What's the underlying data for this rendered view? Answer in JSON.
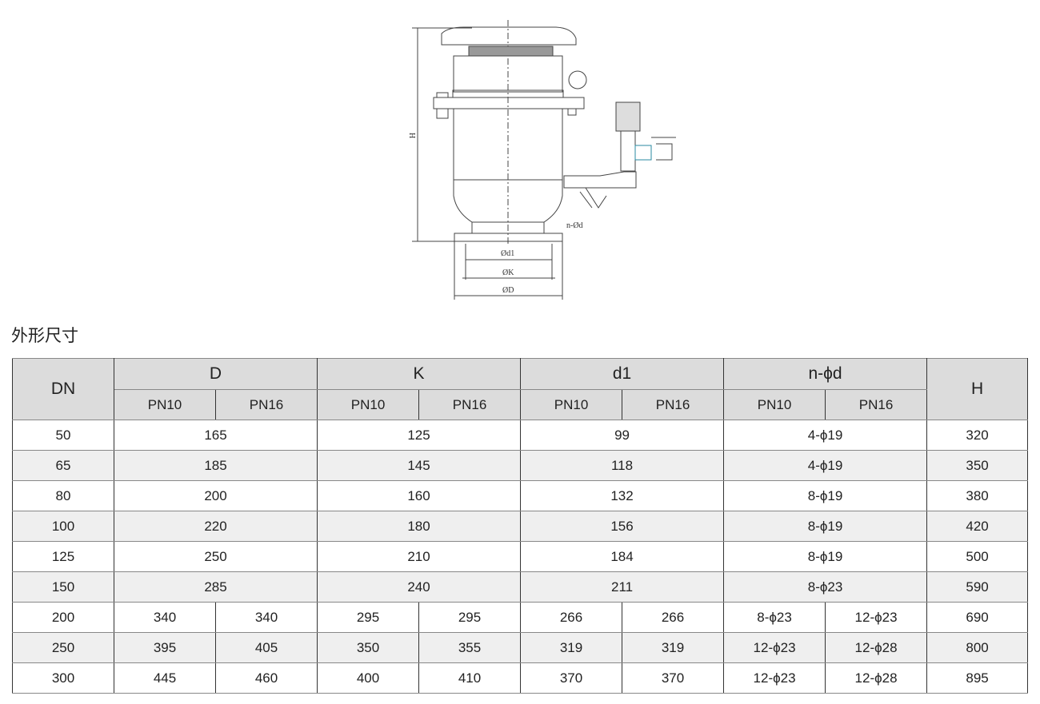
{
  "drawing": {
    "labels": {
      "H": "H",
      "nd": "n-Ød",
      "d1": "Ød1",
      "K": "ØK",
      "D": "ØD"
    }
  },
  "title": "外形尺寸",
  "table": {
    "header": {
      "DN": "DN",
      "D": "D",
      "K": "K",
      "d1": "d1",
      "nd": "n-ϕd",
      "H": "H",
      "PN10": "PN10",
      "PN16": "PN16"
    },
    "rows": [
      {
        "DN": "50",
        "merged": true,
        "D": "165",
        "K": "125",
        "d1": "99",
        "nd": "4-ϕ19",
        "H": "320"
      },
      {
        "DN": "65",
        "merged": true,
        "D": "185",
        "K": "145",
        "d1": "118",
        "nd": "4-ϕ19",
        "H": "350"
      },
      {
        "DN": "80",
        "merged": true,
        "D": "200",
        "K": "160",
        "d1": "132",
        "nd": "8-ϕ19",
        "H": "380"
      },
      {
        "DN": "100",
        "merged": true,
        "D": "220",
        "K": "180",
        "d1": "156",
        "nd": "8-ϕ19",
        "H": "420"
      },
      {
        "DN": "125",
        "merged": true,
        "D": "250",
        "K": "210",
        "d1": "184",
        "nd": "8-ϕ19",
        "H": "500"
      },
      {
        "DN": "150",
        "merged": true,
        "D": "285",
        "K": "240",
        "d1": "211",
        "nd": "8-ϕ23",
        "H": "590"
      },
      {
        "DN": "200",
        "merged": false,
        "D": [
          "340",
          "340"
        ],
        "K": [
          "295",
          "295"
        ],
        "d1": [
          "266",
          "266"
        ],
        "nd": [
          "8-ϕ23",
          "12-ϕ23"
        ],
        "H": "690"
      },
      {
        "DN": "250",
        "merged": false,
        "D": [
          "395",
          "405"
        ],
        "K": [
          "350",
          "355"
        ],
        "d1": [
          "319",
          "319"
        ],
        "nd": [
          "12-ϕ23",
          "12-ϕ28"
        ],
        "H": "800"
      },
      {
        "DN": "300",
        "merged": false,
        "D": [
          "445",
          "460"
        ],
        "K": [
          "400",
          "410"
        ],
        "d1": [
          "370",
          "370"
        ],
        "nd": [
          "12-ϕ23",
          "12-ϕ28"
        ],
        "H": "895"
      }
    ]
  }
}
